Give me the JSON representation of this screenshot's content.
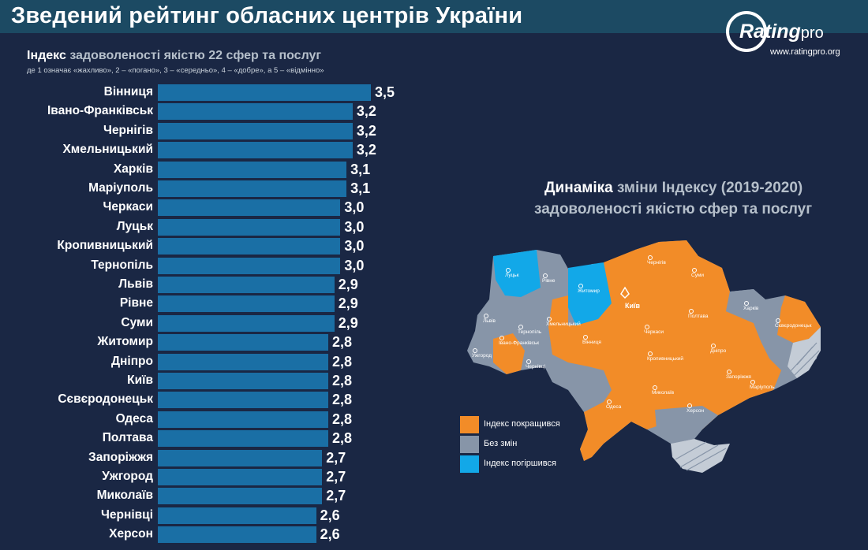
{
  "header": {
    "title": "Зведений рейтинг обласних центрів України"
  },
  "logo": {
    "brand": "Rating",
    "brand_suffix": "pro",
    "site": "www.ratingpro.org"
  },
  "chart_data": {
    "type": "bar",
    "title_strong": "Індекс",
    "title_rest": "задоволеності якістю 22 сфер та послуг",
    "subtitle": "де 1 означає «жахливо», 2 – «погано», 3 – «середньо», 4 – «добре», а 5 – «відмінно»",
    "orientation": "horizontal",
    "categories": [
      "Вінниця",
      "Івано-Франківськ",
      "Чернігів",
      "Хмельницький",
      "Харків",
      "Маріуполь",
      "Черкаси",
      "Луцьк",
      "Кропивницький",
      "Тернопіль",
      "Львів",
      "Рівне",
      "Суми",
      "Житомир",
      "Дніпро",
      "Київ",
      "Сєвєродонецьк",
      "Одеса",
      "Полтава",
      "Запоріжжя",
      "Ужгород",
      "Миколаїв",
      "Чернівці",
      "Херсон"
    ],
    "values": [
      3.5,
      3.2,
      3.2,
      3.2,
      3.1,
      3.1,
      3.0,
      3.0,
      3.0,
      3.0,
      2.9,
      2.9,
      2.9,
      2.8,
      2.8,
      2.8,
      2.8,
      2.8,
      2.8,
      2.7,
      2.7,
      2.7,
      2.6,
      2.6
    ],
    "labels": [
      "3,5",
      "3,2",
      "3,2",
      "3,2",
      "3,1",
      "3,1",
      "3,0",
      "3,0",
      "3,0",
      "3,0",
      "2,9",
      "2,9",
      "2,9",
      "2,8",
      "2,8",
      "2,8",
      "2,8",
      "2,8",
      "2,8",
      "2,7",
      "2,7",
      "2,7",
      "2,6",
      "2,6"
    ],
    "bar_color": "#1a6fa5"
  },
  "map": {
    "title_strong": "Динаміка",
    "title_rest": "зміни Індексу (2019-2020)",
    "title_line2": "задоволеності якістю сфер та послуг",
    "capital": "Київ",
    "regions": [
      {
        "name": "Луцьк",
        "status": "worse"
      },
      {
        "name": "Рівне",
        "status": "same"
      },
      {
        "name": "Житомир",
        "status": "worse"
      },
      {
        "name": "Чернігів",
        "status": "better"
      },
      {
        "name": "Суми",
        "status": "better"
      },
      {
        "name": "Львів",
        "status": "same"
      },
      {
        "name": "Хмельницький",
        "status": "better"
      },
      {
        "name": "Тернопіль",
        "status": "same"
      },
      {
        "name": "Харків",
        "status": "same"
      },
      {
        "name": "Полтава",
        "status": "better"
      },
      {
        "name": "Черкаси",
        "status": "better"
      },
      {
        "name": "Вінниця",
        "status": "better"
      },
      {
        "name": "Ужгород",
        "status": "same"
      },
      {
        "name": "Івано-Франківськ",
        "status": "better"
      },
      {
        "name": "Чернівці",
        "status": "same"
      },
      {
        "name": "Кропивницький",
        "status": "better"
      },
      {
        "name": "Дніпро",
        "status": "better"
      },
      {
        "name": "Запоріжжя",
        "status": "better"
      },
      {
        "name": "Маріуполь",
        "status": "better"
      },
      {
        "name": "Сєвєродонецьк",
        "status": "better"
      },
      {
        "name": "Миколаїв",
        "status": "better"
      },
      {
        "name": "Одеса",
        "status": "better"
      },
      {
        "name": "Херсон",
        "status": "same"
      }
    ],
    "legend": [
      {
        "label": "Індекс покращився",
        "color": "#f28c28"
      },
      {
        "label": "Без змін",
        "color": "#8795a8"
      },
      {
        "label": "Індекс погіршився",
        "color": "#12a8e8"
      }
    ]
  }
}
